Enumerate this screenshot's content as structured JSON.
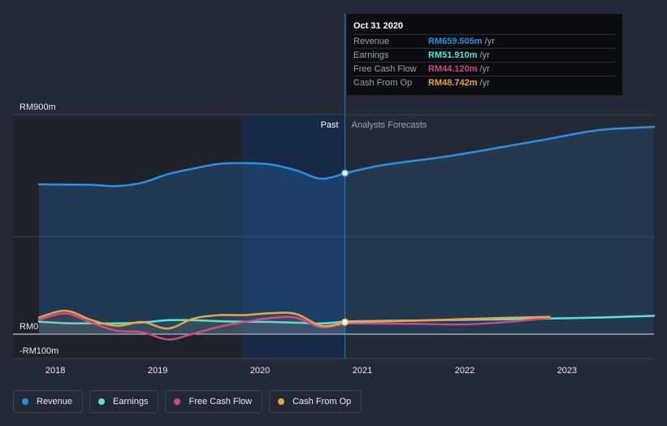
{
  "chart_data": {
    "type": "line",
    "title": "",
    "xlabel": "",
    "ylabel": "",
    "ylim": [
      -100,
      900
    ],
    "xlim": [
      2017.64,
      2023.85
    ],
    "y_tick_labels": [
      {
        "value": 900,
        "label": "RM900m"
      },
      {
        "value": 0,
        "label": "RM0"
      },
      {
        "value": -100,
        "label": "-RM100m"
      }
    ],
    "x_tick_labels": [
      {
        "value": 2018,
        "label": "2018"
      },
      {
        "value": 2019,
        "label": "2019"
      },
      {
        "value": 2020,
        "label": "2020"
      },
      {
        "value": 2021,
        "label": "2021"
      },
      {
        "value": 2022,
        "label": "2022"
      },
      {
        "value": 2023,
        "label": "2023"
      }
    ],
    "past_end": 2020.83,
    "highlight_start": 2019.83,
    "past_label": "Past",
    "forecast_label": "Analysts Forecasts",
    "series": [
      {
        "name": "Revenue",
        "color": "#2d8fe3",
        "fill": true,
        "x": [
          2017.84,
          2018.1,
          2018.35,
          2018.6,
          2018.85,
          2019.1,
          2019.35,
          2019.6,
          2019.85,
          2020.1,
          2020.35,
          2020.6,
          2020.83
        ],
        "y": [
          614,
          613,
          612,
          607,
          621,
          656,
          679,
          698,
          701,
          696,
          672,
          637,
          660
        ],
        "forecast_x": [
          2020.83,
          2021.2,
          2021.8,
          2022.3,
          2022.8,
          2023.3,
          2023.85
        ],
        "forecast_y": [
          660,
          693,
          727,
          762,
          799,
          836,
          850
        ]
      },
      {
        "name": "Earnings",
        "color": "#5ee1d2",
        "x": [
          2017.84,
          2018.1,
          2018.35,
          2018.6,
          2018.85,
          2019.1,
          2019.35,
          2019.6,
          2019.85,
          2020.1,
          2020.35,
          2020.6,
          2020.83
        ],
        "y": [
          51,
          45,
          44,
          44,
          48,
          57,
          57,
          53,
          51,
          50,
          47,
          44,
          52
        ],
        "forecast_x": [
          2020.83,
          2021.5,
          2022.3,
          2022.83,
          2023.3,
          2023.85
        ],
        "forecast_y": [
          52,
          56,
          60,
          64,
          68,
          75
        ]
      },
      {
        "name": "Free Cash Flow",
        "color": "#c84a84",
        "x": [
          2017.84,
          2018.1,
          2018.35,
          2018.6,
          2018.85,
          2019.1,
          2019.35,
          2019.6,
          2019.85,
          2020.1,
          2020.35,
          2020.6,
          2020.83
        ],
        "y": [
          59,
          85,
          47,
          14,
          8,
          -22,
          2,
          30,
          50,
          66,
          68,
          28,
          44
        ],
        "forecast_x": [
          2020.83,
          2021.5,
          2022.0,
          2022.5,
          2022.83
        ],
        "forecast_y": [
          44,
          42,
          40,
          53,
          68
        ]
      },
      {
        "name": "Cash From Op",
        "color": "#e8a14c",
        "x": [
          2017.84,
          2018.1,
          2018.35,
          2018.6,
          2018.85,
          2019.1,
          2019.35,
          2019.6,
          2019.85,
          2020.1,
          2020.35,
          2020.6,
          2020.83
        ],
        "y": [
          68,
          96,
          58,
          34,
          50,
          23,
          64,
          78,
          78,
          86,
          83,
          34,
          49
        ],
        "forecast_x": [
          2020.83,
          2021.5,
          2022.0,
          2022.5,
          2022.83
        ],
        "forecast_y": [
          49,
          55,
          62,
          68,
          71
        ]
      }
    ]
  },
  "tooltip": {
    "date": "Oct 31 2020",
    "rows": [
      {
        "name": "Revenue",
        "value": "RM659.505m",
        "unit": "/yr",
        "color": "#2d8fe3"
      },
      {
        "name": "Earnings",
        "value": "RM51.910m",
        "unit": "/yr",
        "color": "#5ee1d2"
      },
      {
        "name": "Free Cash Flow",
        "value": "RM44.120m",
        "unit": "/yr",
        "color": "#c84a84"
      },
      {
        "name": "Cash From Op",
        "value": "RM48.742m",
        "unit": "/yr",
        "color": "#e8a14c"
      }
    ]
  },
  "legend": [
    {
      "label": "Revenue",
      "color": "#2d8fe3"
    },
    {
      "label": "Earnings",
      "color": "#5ee1d2"
    },
    {
      "label": "Free Cash Flow",
      "color": "#c84a84"
    },
    {
      "label": "Cash From Op",
      "color": "#e8a14c"
    }
  ]
}
